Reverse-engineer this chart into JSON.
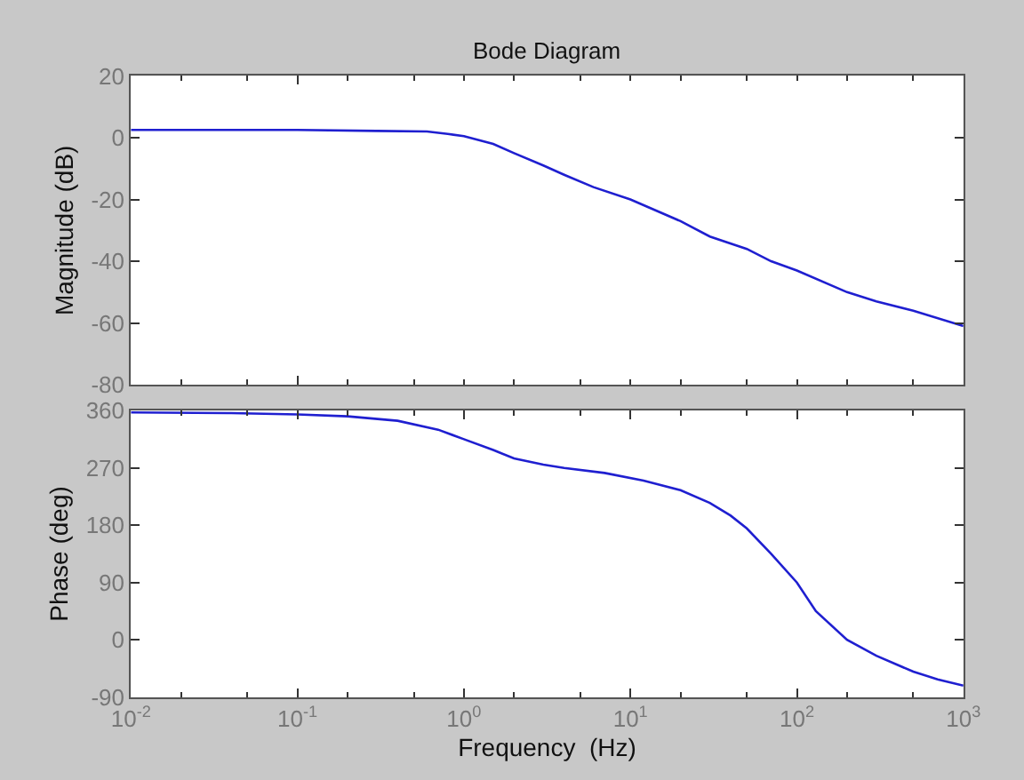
{
  "chart_data": [
    {
      "type": "line",
      "title": "Bode Diagram",
      "ylabel": "Magnitude (dB)",
      "x": [
        0.01,
        0.1,
        0.3,
        0.6,
        0.8,
        1,
        1.5,
        2,
        3,
        4,
        6,
        10,
        20,
        30,
        50,
        70,
        100,
        200,
        300,
        500,
        1000
      ],
      "series": [
        {
          "color": "#1f1fd0",
          "values": [
            2.5,
            2.5,
            2.2,
            2,
            1.2,
            0.5,
            -2,
            -5,
            -9,
            -12,
            -16,
            -20,
            -27,
            -32,
            -36,
            -40,
            -43,
            -50,
            -53,
            -56,
            -61
          ]
        }
      ],
      "xlim": [
        0.01,
        1000
      ],
      "xticks": [
        {
          "value": 0.01,
          "label": null
        },
        {
          "value": 0.1,
          "label": null
        },
        {
          "value": 1,
          "label": null
        },
        {
          "value": 10,
          "label": null
        },
        {
          "value": 100,
          "label": null
        },
        {
          "value": 1000,
          "label": null
        }
      ],
      "ylim": [
        -80,
        20
      ],
      "yticks": [
        -80,
        -60,
        -40,
        -20,
        0,
        20
      ],
      "log": "x",
      "tick_labels": "y"
    },
    {
      "type": "line",
      "xlabel": "Frequency  (Hz)",
      "ylabel": "Phase (deg)",
      "x": [
        0.01,
        0.04,
        0.1,
        0.2,
        0.4,
        0.7,
        1,
        1.5,
        2,
        3,
        4,
        7,
        12,
        20,
        30,
        40,
        50,
        70,
        100,
        130,
        200,
        300,
        500,
        700,
        1000
      ],
      "series": [
        {
          "color": "#1f1fd0",
          "values": [
            357,
            356,
            354,
            351,
            344,
            330,
            315,
            298,
            285,
            275,
            270,
            262,
            250,
            235,
            215,
            195,
            175,
            135,
            90,
            45,
            0,
            -25,
            -50,
            -62,
            -72
          ]
        }
      ],
      "xlim": [
        0.01,
        1000
      ],
      "xticks": [
        {
          "value": 0.01,
          "label": "10$^{-2}$"
        },
        {
          "value": 0.1,
          "label": "10$^{-1}$"
        },
        {
          "value": 1,
          "label": "10$^{0}$"
        },
        {
          "value": 10,
          "label": "10$^{1}$"
        },
        {
          "value": 100,
          "label": "10$^{2}$"
        },
        {
          "value": 1000,
          "label": "10$^{3}$"
        }
      ],
      "ylim": [
        -90,
        360
      ],
      "yticks": [
        -90,
        0,
        90,
        180,
        270,
        360
      ],
      "log": "x"
    }
  ]
}
